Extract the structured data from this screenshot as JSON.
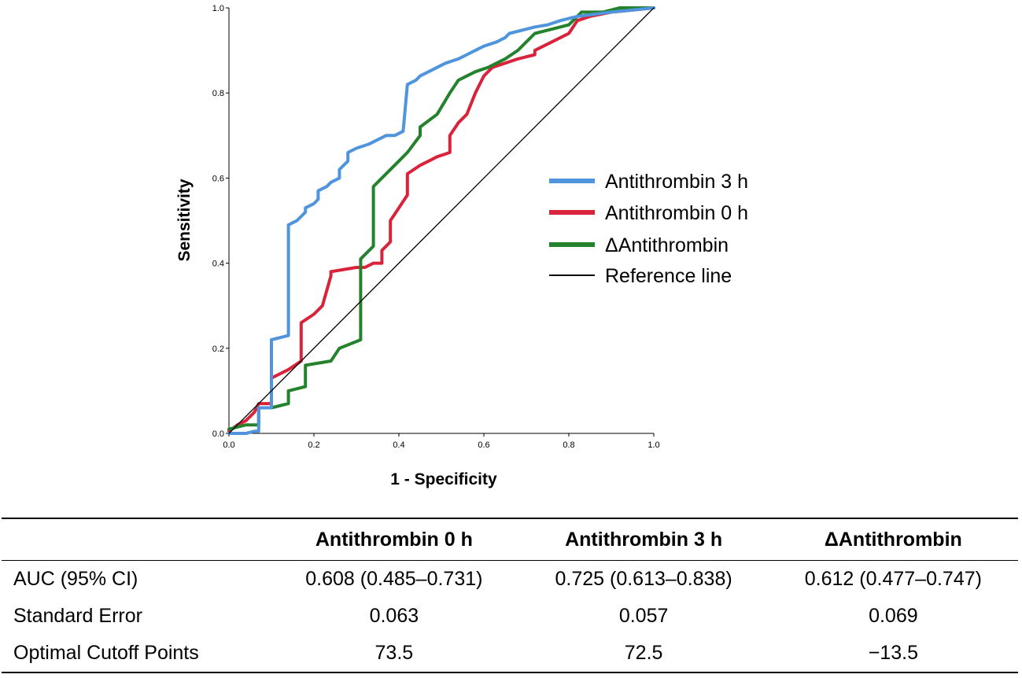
{
  "chart_data": {
    "type": "line",
    "title": "",
    "xlabel": "1 - Specificity",
    "ylabel": "Sensitivity",
    "xlim": [
      0.0,
      1.0
    ],
    "ylim": [
      0.0,
      1.0
    ],
    "xticks": [
      "0.0",
      "0.2",
      "0.4",
      "0.6",
      "0.8",
      "1.0"
    ],
    "yticks": [
      "0.0",
      "0.2",
      "0.4",
      "0.6",
      "0.8",
      "1.0"
    ],
    "grid": false,
    "legend_position": "center-right",
    "series": [
      {
        "name": "Antithrombin 3 h",
        "color": "#4f94dc",
        "x": [
          0.0,
          0.02,
          0.04,
          0.06,
          0.07,
          0.07,
          0.1,
          0.1,
          0.1,
          0.1,
          0.1,
          0.14,
          0.14,
          0.14,
          0.16,
          0.18,
          0.18,
          0.2,
          0.21,
          0.21,
          0.23,
          0.24,
          0.26,
          0.26,
          0.28,
          0.28,
          0.3,
          0.33,
          0.35,
          0.37,
          0.39,
          0.41,
          0.42,
          0.44,
          0.45,
          0.47,
          0.49,
          0.51,
          0.54,
          0.56,
          0.58,
          0.6,
          0.63,
          0.65,
          0.66,
          0.7,
          0.72,
          0.75,
          0.78,
          0.82,
          0.86,
          0.9,
          0.95,
          1.0
        ],
        "y": [
          0.0,
          0.0,
          0.0,
          0.005,
          0.005,
          0.06,
          0.06,
          0.07,
          0.1,
          0.15,
          0.22,
          0.23,
          0.4,
          0.49,
          0.5,
          0.52,
          0.53,
          0.54,
          0.55,
          0.57,
          0.58,
          0.59,
          0.6,
          0.62,
          0.64,
          0.66,
          0.67,
          0.68,
          0.69,
          0.7,
          0.7,
          0.71,
          0.82,
          0.83,
          0.84,
          0.85,
          0.86,
          0.87,
          0.88,
          0.89,
          0.9,
          0.91,
          0.92,
          0.93,
          0.94,
          0.95,
          0.955,
          0.96,
          0.97,
          0.98,
          0.985,
          0.99,
          0.995,
          1.0
        ]
      },
      {
        "name": "Antithrombin 0 h",
        "color": "#d9233b",
        "x": [
          0.0,
          0.02,
          0.04,
          0.06,
          0.07,
          0.1,
          0.1,
          0.14,
          0.17,
          0.17,
          0.2,
          0.22,
          0.24,
          0.24,
          0.3,
          0.32,
          0.34,
          0.36,
          0.36,
          0.38,
          0.38,
          0.4,
          0.42,
          0.42,
          0.45,
          0.47,
          0.49,
          0.52,
          0.52,
          0.54,
          0.56,
          0.58,
          0.6,
          0.62,
          0.65,
          0.68,
          0.72,
          0.72,
          0.76,
          0.8,
          0.82,
          0.85,
          0.9,
          0.95,
          1.0
        ],
        "y": [
          0.005,
          0.02,
          0.03,
          0.05,
          0.07,
          0.07,
          0.13,
          0.15,
          0.17,
          0.26,
          0.28,
          0.3,
          0.37,
          0.38,
          0.39,
          0.39,
          0.4,
          0.4,
          0.43,
          0.45,
          0.5,
          0.53,
          0.56,
          0.61,
          0.63,
          0.64,
          0.65,
          0.66,
          0.7,
          0.73,
          0.75,
          0.8,
          0.84,
          0.86,
          0.87,
          0.88,
          0.89,
          0.9,
          0.92,
          0.94,
          0.97,
          0.98,
          0.99,
          0.995,
          1.0
        ]
      },
      {
        "name": "ΔAntithrombin",
        "color": "#23822b",
        "x": [
          0.0,
          0.04,
          0.07,
          0.07,
          0.1,
          0.14,
          0.14,
          0.18,
          0.18,
          0.24,
          0.26,
          0.31,
          0.31,
          0.34,
          0.34,
          0.38,
          0.42,
          0.45,
          0.45,
          0.49,
          0.52,
          0.54,
          0.56,
          0.58,
          0.61,
          0.65,
          0.68,
          0.72,
          0.76,
          0.8,
          0.83,
          0.88,
          0.92,
          0.96,
          1.0
        ],
        "y": [
          0.01,
          0.02,
          0.02,
          0.06,
          0.06,
          0.07,
          0.1,
          0.11,
          0.16,
          0.17,
          0.2,
          0.22,
          0.41,
          0.44,
          0.58,
          0.62,
          0.66,
          0.7,
          0.72,
          0.75,
          0.8,
          0.83,
          0.84,
          0.85,
          0.86,
          0.88,
          0.9,
          0.94,
          0.95,
          0.96,
          0.99,
          0.99,
          1.0,
          1.0,
          1.0
        ]
      },
      {
        "name": "Reference line",
        "color": "#000000",
        "x": [
          0.0,
          1.0
        ],
        "y": [
          0.0,
          1.0
        ]
      }
    ]
  },
  "table": {
    "headers": [
      "",
      "Antithrombin 0 h",
      "Antithrombin 3 h",
      "ΔAntithrombin"
    ],
    "rows": [
      [
        "AUC (95% CI)",
        "0.608 (0.485–0.731)",
        "0.725 (0.613–0.838)",
        "0.612 (0.477–0.747)"
      ],
      [
        "Standard Error",
        "0.063",
        "0.057",
        "0.069"
      ],
      [
        "Optimal Cutoff Points",
        "73.5",
        "72.5",
        "−13.5"
      ]
    ]
  }
}
